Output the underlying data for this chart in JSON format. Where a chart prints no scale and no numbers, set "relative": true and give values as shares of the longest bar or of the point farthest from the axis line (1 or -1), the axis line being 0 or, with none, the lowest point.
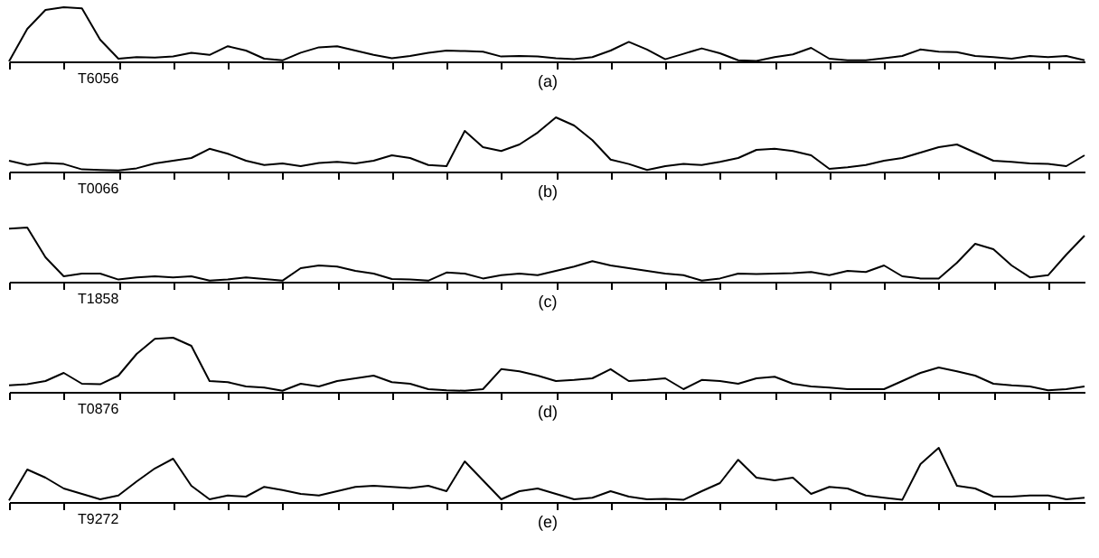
{
  "chart_data": [
    {
      "type": "line",
      "relative": true,
      "tick_labels": false,
      "grid": false,
      "color": "#000000",
      "xlabel": "(a)",
      "annotations": [
        "T6056"
      ],
      "categories": [
        null,
        null,
        null,
        null,
        null,
        null,
        null,
        null,
        null,
        null,
        null,
        null,
        null,
        null,
        null,
        null,
        null,
        null,
        null,
        null,
        null,
        null,
        null,
        null,
        null,
        null,
        null,
        null,
        null,
        null,
        null,
        null,
        null,
        null,
        null,
        null,
        null,
        null,
        null,
        null,
        null,
        null,
        null,
        null,
        null,
        null,
        null,
        null,
        null,
        null,
        null,
        null,
        null,
        null,
        null,
        null,
        null,
        null,
        null,
        null
      ],
      "values": [
        0.0,
        0.6,
        0.95,
        1.0,
        0.98,
        0.4,
        0.05,
        0.08,
        0.07,
        0.09,
        0.16,
        0.12,
        0.28,
        0.2,
        0.05,
        0.02,
        0.16,
        0.26,
        0.28,
        0.2,
        0.12,
        0.06,
        0.1,
        0.16,
        0.2,
        0.19,
        0.18,
        0.09,
        0.1,
        0.09,
        0.06,
        0.04,
        0.08,
        0.2,
        0.36,
        0.22,
        0.04,
        0.14,
        0.24,
        0.15,
        0.02,
        0.01,
        0.08,
        0.13,
        0.25,
        0.05,
        0.02,
        0.02,
        0.06,
        0.1,
        0.22,
        0.18,
        0.17,
        0.1,
        0.08,
        0.05,
        0.1,
        0.08,
        0.1,
        0.02
      ]
    },
    {
      "type": "line",
      "relative": true,
      "tick_labels": false,
      "grid": false,
      "color": "#000000",
      "xlabel": "(b)",
      "annotations": [
        "T0066"
      ],
      "categories": [
        null,
        null,
        null,
        null,
        null,
        null,
        null,
        null,
        null,
        null,
        null,
        null,
        null,
        null,
        null,
        null,
        null,
        null,
        null,
        null,
        null,
        null,
        null,
        null,
        null,
        null,
        null,
        null,
        null,
        null,
        null,
        null,
        null,
        null,
        null,
        null,
        null,
        null,
        null,
        null,
        null,
        null,
        null,
        null,
        null,
        null,
        null,
        null,
        null,
        null,
        null,
        null,
        null,
        null,
        null,
        null,
        null,
        null,
        null,
        null
      ],
      "values": [
        0.2,
        0.12,
        0.16,
        0.14,
        0.04,
        0.03,
        0.02,
        0.06,
        0.15,
        0.2,
        0.25,
        0.42,
        0.33,
        0.2,
        0.12,
        0.15,
        0.1,
        0.16,
        0.18,
        0.15,
        0.2,
        0.3,
        0.25,
        0.12,
        0.1,
        0.75,
        0.45,
        0.38,
        0.5,
        0.72,
        1.0,
        0.85,
        0.58,
        0.22,
        0.14,
        0.03,
        0.1,
        0.14,
        0.12,
        0.18,
        0.25,
        0.4,
        0.42,
        0.38,
        0.3,
        0.05,
        0.08,
        0.12,
        0.2,
        0.25,
        0.35,
        0.45,
        0.5,
        0.35,
        0.2,
        0.18,
        0.15,
        0.14,
        0.1,
        0.3
      ]
    },
    {
      "type": "line",
      "relative": true,
      "tick_labels": false,
      "grid": false,
      "color": "#000000",
      "xlabel": "(c)",
      "annotations": [
        "T1858"
      ],
      "categories": [
        null,
        null,
        null,
        null,
        null,
        null,
        null,
        null,
        null,
        null,
        null,
        null,
        null,
        null,
        null,
        null,
        null,
        null,
        null,
        null,
        null,
        null,
        null,
        null,
        null,
        null,
        null,
        null,
        null,
        null,
        null,
        null,
        null,
        null,
        null,
        null,
        null,
        null,
        null,
        null,
        null,
        null,
        null,
        null,
        null,
        null,
        null,
        null,
        null,
        null,
        null,
        null,
        null,
        null,
        null,
        null,
        null,
        null,
        null,
        null
      ],
      "values": [
        0.98,
        1.0,
        0.45,
        0.1,
        0.15,
        0.15,
        0.04,
        0.08,
        0.1,
        0.08,
        0.1,
        0.02,
        0.04,
        0.08,
        0.05,
        0.02,
        0.25,
        0.3,
        0.28,
        0.2,
        0.15,
        0.05,
        0.04,
        0.02,
        0.17,
        0.15,
        0.06,
        0.12,
        0.15,
        0.12,
        0.2,
        0.28,
        0.38,
        0.3,
        0.25,
        0.2,
        0.15,
        0.12,
        0.02,
        0.06,
        0.15,
        0.14,
        0.15,
        0.16,
        0.18,
        0.12,
        0.2,
        0.18,
        0.3,
        0.1,
        0.06,
        0.06,
        0.35,
        0.7,
        0.6,
        0.3,
        0.08,
        0.12,
        0.5,
        0.85
      ]
    },
    {
      "type": "line",
      "relative": true,
      "tick_labels": false,
      "grid": false,
      "color": "#000000",
      "xlabel": "(d)",
      "annotations": [
        "T0876"
      ],
      "categories": [
        null,
        null,
        null,
        null,
        null,
        null,
        null,
        null,
        null,
        null,
        null,
        null,
        null,
        null,
        null,
        null,
        null,
        null,
        null,
        null,
        null,
        null,
        null,
        null,
        null,
        null,
        null,
        null,
        null,
        null,
        null,
        null,
        null,
        null,
        null,
        null,
        null,
        null,
        null,
        null,
        null,
        null,
        null,
        null,
        null,
        null,
        null,
        null,
        null,
        null,
        null,
        null,
        null,
        null,
        null,
        null,
        null,
        null,
        null,
        null
      ],
      "values": [
        0.12,
        0.14,
        0.2,
        0.35,
        0.15,
        0.14,
        0.3,
        0.7,
        0.98,
        1.0,
        0.85,
        0.2,
        0.18,
        0.1,
        0.08,
        0.02,
        0.15,
        0.1,
        0.2,
        0.25,
        0.3,
        0.18,
        0.15,
        0.05,
        0.03,
        0.02,
        0.05,
        0.42,
        0.38,
        0.3,
        0.2,
        0.22,
        0.25,
        0.42,
        0.2,
        0.22,
        0.25,
        0.05,
        0.22,
        0.2,
        0.15,
        0.25,
        0.28,
        0.15,
        0.1,
        0.08,
        0.05,
        0.05,
        0.05,
        0.2,
        0.35,
        0.45,
        0.38,
        0.3,
        0.15,
        0.12,
        0.1,
        0.03,
        0.05,
        0.1
      ]
    },
    {
      "type": "line",
      "relative": true,
      "tick_labels": false,
      "grid": false,
      "color": "#000000",
      "xlabel": "(e)",
      "annotations": [
        "T9272"
      ],
      "categories": [
        null,
        null,
        null,
        null,
        null,
        null,
        null,
        null,
        null,
        null,
        null,
        null,
        null,
        null,
        null,
        null,
        null,
        null,
        null,
        null,
        null,
        null,
        null,
        null,
        null,
        null,
        null,
        null,
        null,
        null,
        null,
        null,
        null,
        null,
        null,
        null,
        null,
        null,
        null,
        null,
        null,
        null,
        null,
        null,
        null,
        null,
        null,
        null,
        null,
        null,
        null,
        null,
        null,
        null,
        null,
        null,
        null,
        null,
        null,
        null
      ],
      "values": [
        0.03,
        0.6,
        0.45,
        0.25,
        0.15,
        0.05,
        0.12,
        0.38,
        0.62,
        0.8,
        0.3,
        0.05,
        0.12,
        0.1,
        0.28,
        0.22,
        0.15,
        0.12,
        0.2,
        0.28,
        0.3,
        0.28,
        0.26,
        0.3,
        0.2,
        0.75,
        0.4,
        0.05,
        0.2,
        0.25,
        0.15,
        0.05,
        0.08,
        0.2,
        0.1,
        0.05,
        0.06,
        0.04,
        0.2,
        0.35,
        0.78,
        0.45,
        0.4,
        0.45,
        0.15,
        0.28,
        0.25,
        0.12,
        0.08,
        0.04,
        0.7,
        1.0,
        0.3,
        0.25,
        0.1,
        0.1,
        0.12,
        0.12,
        0.05,
        0.08
      ]
    }
  ]
}
